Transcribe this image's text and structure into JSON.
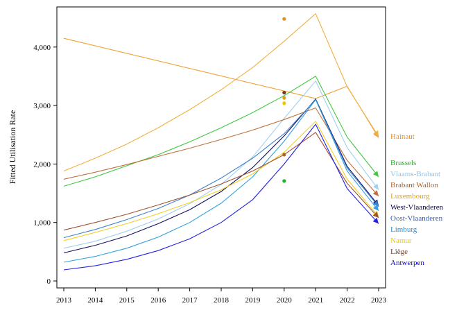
{
  "chart_data": {
    "type": "line",
    "title": "",
    "xlabel": "",
    "ylabel": "Fitted Utilisation Rate",
    "x": [
      2013,
      2014,
      2015,
      2016,
      2017,
      2018,
      2019,
      2020,
      2021,
      2022,
      2023
    ],
    "xlim": [
      2013,
      2023
    ],
    "ylim": [
      -150,
      4700
    ],
    "yticks": [
      0,
      1000,
      2000,
      3000,
      4000
    ],
    "ytick_labels": [
      "0",
      "1,000",
      "2,000",
      "3,000",
      "4,000"
    ],
    "xtick_labels": [
      "2013",
      "2014",
      "2015",
      "2016",
      "2017",
      "2018",
      "2019",
      "2020",
      "2021",
      "2022",
      "2023"
    ],
    "grid": false,
    "legend_position": "right (labels at line ends)",
    "series": [
      {
        "name": "Hainaut",
        "color": "#f0a030",
        "label_color": "#e8901c",
        "x": [
          2013,
          2021,
          2022,
          2023
        ],
        "values": [
          4150,
          3120,
          3330,
          2450
        ],
        "obs2020": 4480
      },
      {
        "name": "Brussels",
        "color": "#40c840",
        "label_color": "#22b022",
        "x": [
          2013,
          2014,
          2015,
          2016,
          2017,
          2018,
          2019,
          2020,
          2021,
          2022,
          2023
        ],
        "values": [
          1620,
          1780,
          1970,
          2160,
          2380,
          2620,
          2880,
          3170,
          3500,
          2460,
          1780
        ],
        "obs2020": 1710
      },
      {
        "name": "Vlaams-Brabant",
        "color": "#a0d0f0",
        "label_color": "#8cc4ec",
        "x": [
          2013,
          2014,
          2015,
          2016,
          2017,
          2018,
          2019,
          2020,
          2021,
          2022,
          2023
        ],
        "values": [
          560,
          680,
          850,
          1060,
          1320,
          1650,
          2120,
          2780,
          3420,
          2280,
          1560
        ],
        "obs2020": null
      },
      {
        "name": "Brabant Wallon",
        "color": "#c0703a",
        "label_color": "#b45f28",
        "x": [
          2013,
          2014,
          2015,
          2016,
          2017,
          2018,
          2019,
          2020,
          2021,
          2022,
          2023
        ],
        "values": [
          1740,
          1860,
          1990,
          2130,
          2270,
          2420,
          2580,
          2760,
          2960,
          2060,
          1450
        ],
        "obs2020": 2160
      },
      {
        "name": "Luxembourg",
        "color": "#f0b040",
        "label_color": "#e0a020",
        "x": [
          2013,
          2014,
          2015,
          2016,
          2017,
          2018,
          2019,
          2020,
          2021,
          2022,
          2023
        ],
        "values": [
          1880,
          2100,
          2340,
          2620,
          2930,
          3270,
          3650,
          4100,
          4570,
          3320,
          2470
        ],
        "obs2020": 3130
      },
      {
        "name": "West-Vlaanderen",
        "color": "#101060",
        "label_color": "#000050",
        "x": [
          2013,
          2014,
          2015,
          2016,
          2017,
          2018,
          2019,
          2020,
          2021,
          2022,
          2023
        ],
        "values": [
          480,
          610,
          770,
          980,
          1220,
          1530,
          1940,
          2480,
          3110,
          1960,
          1290
        ],
        "obs2020": null
      },
      {
        "name": "Oost-Vlaanderen",
        "color": "#4080d0",
        "label_color": "#3060c0",
        "x": [
          2013,
          2014,
          2015,
          2016,
          2017,
          2018,
          2019,
          2020,
          2021,
          2022,
          2023
        ],
        "values": [
          740,
          880,
          1050,
          1240,
          1470,
          1760,
          2100,
          2520,
          3100,
          1930,
          1270
        ],
        "obs2020": null
      },
      {
        "name": "Limburg",
        "color": "#30a0e0",
        "label_color": "#2090d8",
        "x": [
          2013,
          2014,
          2015,
          2016,
          2017,
          2018,
          2019,
          2020,
          2021,
          2022,
          2023
        ],
        "values": [
          320,
          420,
          560,
          750,
          1000,
          1330,
          1780,
          2390,
          3100,
          1880,
          1200
        ],
        "obs2020": null
      },
      {
        "name": "Namur",
        "color": "#f0d020",
        "label_color": "#f0c800",
        "x": [
          2013,
          2014,
          2015,
          2016,
          2017,
          2018,
          2019,
          2020,
          2021,
          2022,
          2023
        ],
        "values": [
          690,
          830,
          980,
          1150,
          1340,
          1560,
          1830,
          2200,
          2730,
          1740,
          1100
        ],
        "obs2020": 3040
      },
      {
        "name": "Liège",
        "color": "#a05030",
        "label_color": "#7a3a1a",
        "x": [
          2013,
          2014,
          2015,
          2016,
          2017,
          2018,
          2019,
          2020,
          2021,
          2022,
          2023
        ],
        "values": [
          870,
          1000,
          1140,
          1300,
          1470,
          1660,
          1880,
          2160,
          2540,
          1670,
          1080
        ],
        "obs2020": 3220
      },
      {
        "name": "Antwerpen",
        "color": "#2020e0",
        "label_color": "#0000d0",
        "x": [
          2013,
          2014,
          2015,
          2016,
          2017,
          2018,
          2019,
          2020,
          2021,
          2022,
          2023
        ],
        "values": [
          190,
          260,
          370,
          520,
          720,
          1000,
          1390,
          2000,
          2680,
          1580,
          980
        ],
        "obs2020": null
      }
    ],
    "legend_order": [
      "Hainaut",
      "Brussels",
      "Vlaams-Brabant",
      "Brabant Wallon",
      "Luxembourg",
      "West-Vlaanderen",
      "Oost-Vlaanderen",
      "Limburg",
      "Namur",
      "Liège",
      "Antwerpen"
    ]
  }
}
